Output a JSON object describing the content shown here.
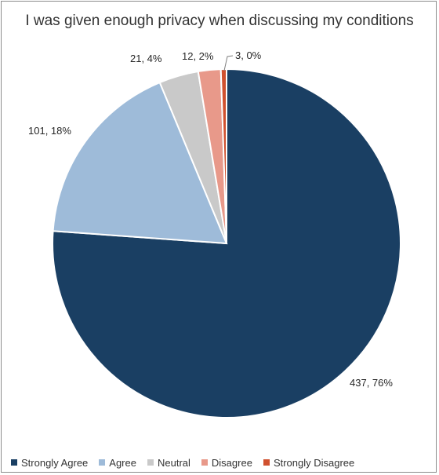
{
  "chart_data": {
    "type": "pie",
    "title": "I was given enough privacy when discussing my conditions",
    "categories": [
      "Strongly Agree",
      "Agree",
      "Neutral",
      "Disagree",
      "Strongly Disagree"
    ],
    "values": [
      437,
      101,
      21,
      12,
      3
    ],
    "percent_labels": [
      "437, 76%",
      "101, 18%",
      "21, 4%",
      "12, 2%",
      "3, 0%"
    ],
    "colors": [
      "#1a3f63",
      "#9ebbd9",
      "#c9c9c9",
      "#e8998a",
      "#d0512f"
    ],
    "legend_position": "bottom"
  }
}
